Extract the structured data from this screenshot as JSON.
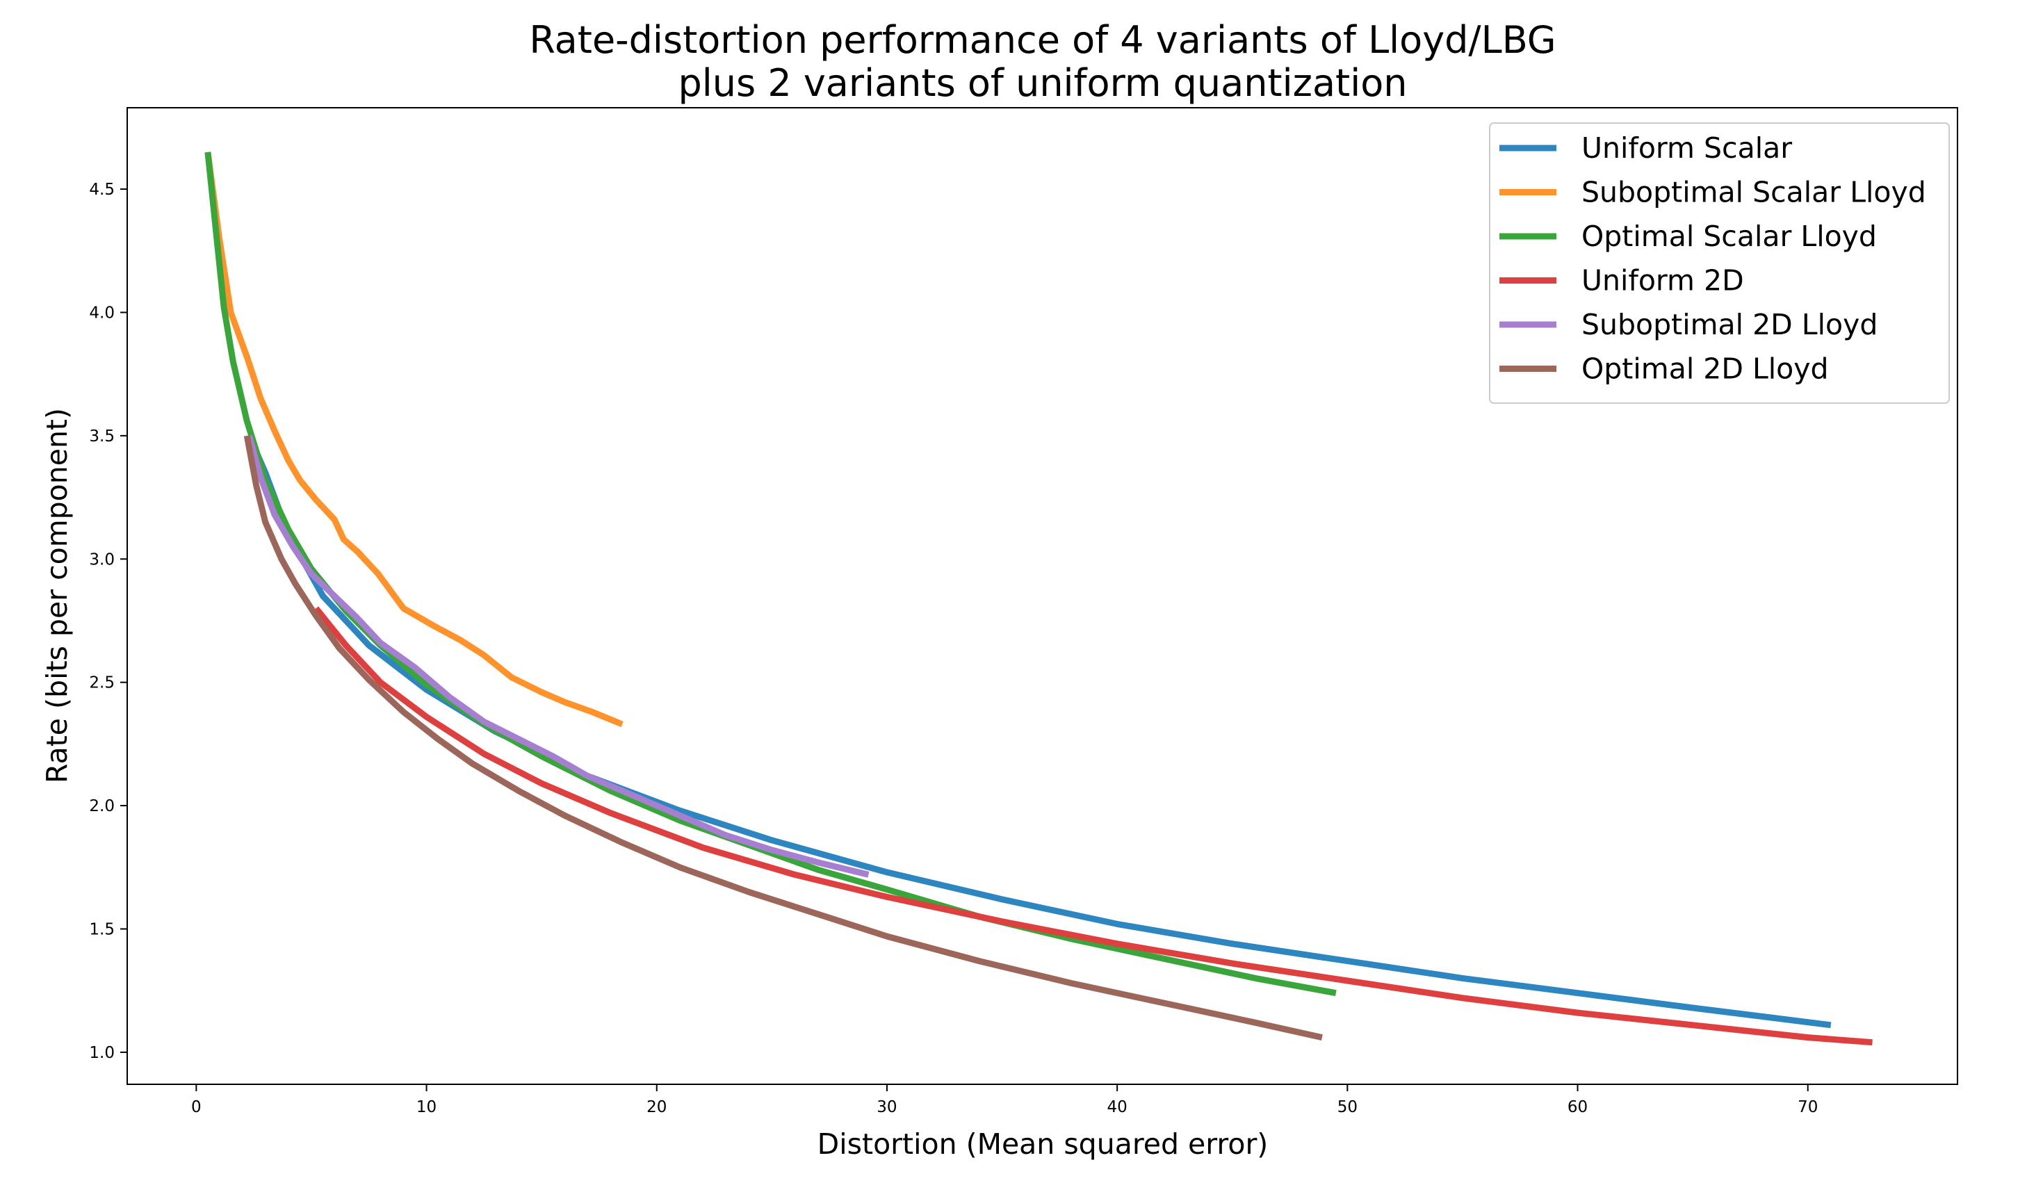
{
  "chart_data": {
    "type": "line",
    "title": "Rate-distortion performance of 4 variants of Lloyd/LBG",
    "subtitle": "plus 2 variants of uniform quantization",
    "xlabel": "Distortion (Mean squared error)",
    "ylabel": "Rate (bits per component)",
    "xlim": [
      -3,
      76.5
    ],
    "ylim": [
      0.87,
      4.83
    ],
    "xticks": [
      0,
      10,
      20,
      30,
      40,
      50,
      60,
      70
    ],
    "yticks": [
      1.0,
      1.5,
      2.0,
      2.5,
      3.0,
      3.5,
      4.0,
      4.5
    ],
    "xtick_labels": [
      "0",
      "10",
      "20",
      "30",
      "40",
      "50",
      "60",
      "70"
    ],
    "ytick_labels": [
      "1.0",
      "1.5",
      "2.0",
      "2.5",
      "3.0",
      "3.5",
      "4.0",
      "4.5"
    ],
    "grid": false,
    "legend_position": "top-right",
    "series": [
      {
        "name": "Uniform Scalar",
        "color": "#2e86c1",
        "x": [
          2.3,
          3.0,
          4.0,
          5.5,
          7.5,
          10.0,
          13.0,
          17.0,
          21.0,
          25.0,
          30.0,
          35.0,
          40.0,
          45.0,
          50.0,
          55.0,
          60.0,
          65.0,
          71.0
        ],
        "y": [
          3.5,
          3.35,
          3.1,
          2.85,
          2.65,
          2.47,
          2.3,
          2.12,
          1.98,
          1.86,
          1.73,
          1.62,
          1.52,
          1.44,
          1.37,
          1.3,
          1.24,
          1.18,
          1.11
        ]
      },
      {
        "name": "Suboptimal Scalar Lloyd",
        "color": "#ff922b",
        "x": [
          0.5,
          1.0,
          1.5,
          2.2,
          2.8,
          3.4,
          4.0,
          4.5,
          5.2,
          6.0,
          6.4,
          7.0,
          7.9,
          9.0,
          10.3,
          11.5,
          12.5,
          13.7,
          15.0,
          16.0,
          17.2,
          18.5
        ],
        "y": [
          4.65,
          4.3,
          4.0,
          3.82,
          3.65,
          3.52,
          3.4,
          3.32,
          3.24,
          3.16,
          3.08,
          3.03,
          2.94,
          2.8,
          2.73,
          2.67,
          2.61,
          2.52,
          2.46,
          2.42,
          2.38,
          2.33
        ]
      },
      {
        "name": "Optimal Scalar Lloyd",
        "color": "#3aa53a",
        "x": [
          0.5,
          1.2,
          1.6,
          2.2,
          3.0,
          4.0,
          5.0,
          6.5,
          8.0,
          10.0,
          12.5,
          15.0,
          18.0,
          21.0,
          24.0,
          27.0,
          30.0,
          34.0,
          38.0,
          42.0,
          46.0,
          49.5
        ],
        "y": [
          4.65,
          4.02,
          3.8,
          3.56,
          3.32,
          3.12,
          2.96,
          2.79,
          2.65,
          2.49,
          2.33,
          2.2,
          2.06,
          1.94,
          1.84,
          1.74,
          1.66,
          1.55,
          1.46,
          1.38,
          1.3,
          1.24
        ]
      },
      {
        "name": "Uniform 2D",
        "color": "#de3f3f",
        "x": [
          5.2,
          6.5,
          8.0,
          10.0,
          12.5,
          15.0,
          18.0,
          22.0,
          26.0,
          30.0,
          35.0,
          40.0,
          45.0,
          50.0,
          55.0,
          60.0,
          65.0,
          70.0,
          72.8
        ],
        "y": [
          2.8,
          2.65,
          2.5,
          2.36,
          2.21,
          2.09,
          1.97,
          1.83,
          1.72,
          1.63,
          1.53,
          1.44,
          1.36,
          1.29,
          1.22,
          1.16,
          1.11,
          1.06,
          1.04
        ]
      },
      {
        "name": "Suboptimal 2D Lloyd",
        "color": "#a67fd1",
        "x": [
          2.3,
          2.8,
          3.4,
          4.2,
          5.0,
          6.0,
          7.0,
          8.0,
          9.5,
          11.0,
          12.5,
          14.0,
          15.5,
          17.0,
          19.0,
          21.0,
          23.0,
          25.0,
          27.0,
          29.2
        ],
        "y": [
          3.5,
          3.33,
          3.18,
          3.05,
          2.94,
          2.85,
          2.76,
          2.66,
          2.56,
          2.44,
          2.34,
          2.27,
          2.2,
          2.12,
          2.04,
          1.96,
          1.88,
          1.82,
          1.77,
          1.72
        ]
      },
      {
        "name": "Optimal 2D Lloyd",
        "color": "#9c665a",
        "x": [
          2.2,
          2.6,
          3.0,
          3.7,
          4.3,
          5.2,
          6.2,
          7.5,
          9.0,
          10.5,
          12.0,
          14.0,
          16.0,
          18.5,
          21.0,
          24.0,
          27.0,
          30.0,
          34.0,
          38.0,
          42.0,
          46.0,
          48.9
        ],
        "y": [
          3.5,
          3.3,
          3.15,
          3.0,
          2.9,
          2.77,
          2.64,
          2.51,
          2.38,
          2.27,
          2.17,
          2.06,
          1.96,
          1.85,
          1.75,
          1.65,
          1.56,
          1.47,
          1.37,
          1.28,
          1.2,
          1.12,
          1.06
        ]
      }
    ]
  }
}
